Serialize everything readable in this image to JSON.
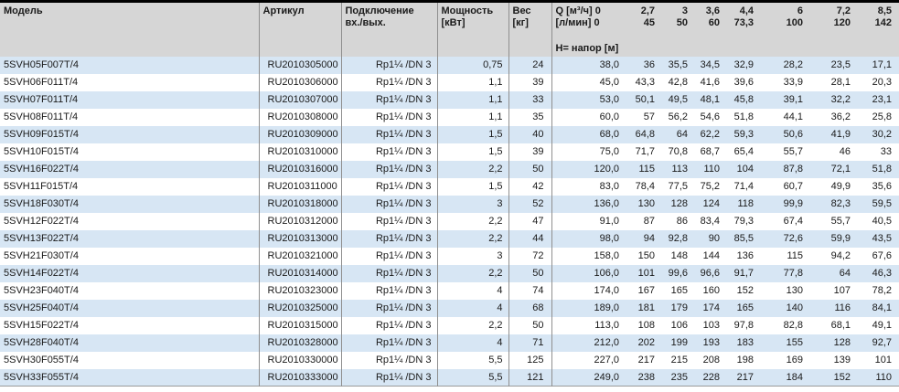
{
  "colors": {
    "header_bg": "#d6d6d6",
    "row_stripe": "#d7e6f4",
    "top_rule": "#000000",
    "column_rule": "#8f8f8f"
  },
  "table": {
    "headers": {
      "model": "Модель",
      "article": "Артикул",
      "connection": [
        "Подключение",
        "вх./вых."
      ],
      "power": [
        "Мощность",
        "[кВт]"
      ],
      "weight": [
        "Вес",
        "[кг]"
      ],
      "flow": [
        "Q [м³/ч] 0",
        "[л/мин] 0"
      ],
      "head_label": "Н= напор [м]",
      "flow_columns": [
        {
          "m3h": "2,7",
          "lmin": "45"
        },
        {
          "m3h": "3",
          "lmin": "50"
        },
        {
          "m3h": "3,6",
          "lmin": "60"
        },
        {
          "m3h": "4,4",
          "lmin": "73,3"
        },
        {
          "m3h": "6",
          "lmin": "100"
        },
        {
          "m3h": "7,2",
          "lmin": "120"
        },
        {
          "m3h": "8,5",
          "lmin": "142"
        }
      ]
    },
    "rows": [
      {
        "model": "5SVH05F007T/4",
        "article": "RU2010305000",
        "connection": "Rp1¼ /DN 3",
        "power": "0,75",
        "weight": "24",
        "head": [
          "38,0",
          "36",
          "35,5",
          "34,5",
          "32,9",
          "28,2",
          "23,5",
          "17,1"
        ]
      },
      {
        "model": "5SVH06F011T/4",
        "article": "RU2010306000",
        "connection": "Rp1¼ /DN 3",
        "power": "1,1",
        "weight": "39",
        "head": [
          "45,0",
          "43,3",
          "42,8",
          "41,6",
          "39,6",
          "33,9",
          "28,1",
          "20,3"
        ]
      },
      {
        "model": "5SVH07F011T/4",
        "article": "RU2010307000",
        "connection": "Rp1¼ /DN 3",
        "power": "1,1",
        "weight": "33",
        "head": [
          "53,0",
          "50,1",
          "49,5",
          "48,1",
          "45,8",
          "39,1",
          "32,2",
          "23,1"
        ]
      },
      {
        "model": "5SVH08F011T/4",
        "article": "RU2010308000",
        "connection": "Rp1¼ /DN 3",
        "power": "1,1",
        "weight": "35",
        "head": [
          "60,0",
          "57",
          "56,2",
          "54,6",
          "51,8",
          "44,1",
          "36,2",
          "25,8"
        ]
      },
      {
        "model": "5SVH09F015T/4",
        "article": "RU2010309000",
        "connection": "Rp1¼ /DN 3",
        "power": "1,5",
        "weight": "40",
        "head": [
          "68,0",
          "64,8",
          "64",
          "62,2",
          "59,3",
          "50,6",
          "41,9",
          "30,2"
        ]
      },
      {
        "model": "5SVH10F015T/4",
        "article": "RU2010310000",
        "connection": "Rp1¼ /DN 3",
        "power": "1,5",
        "weight": "39",
        "head": [
          "75,0",
          "71,7",
          "70,8",
          "68,7",
          "65,4",
          "55,7",
          "46",
          "33"
        ]
      },
      {
        "model": "5SVH16F022T/4",
        "article": "RU2010316000",
        "connection": "Rp1¼ /DN 3",
        "power": "2,2",
        "weight": "50",
        "head": [
          "120,0",
          "115",
          "113",
          "110",
          "104",
          "87,8",
          "72,1",
          "51,8"
        ]
      },
      {
        "model": "5SVH11F015T/4",
        "article": "RU2010311000",
        "connection": "Rp1¼ /DN 3",
        "power": "1,5",
        "weight": "42",
        "head": [
          "83,0",
          "78,4",
          "77,5",
          "75,2",
          "71,4",
          "60,7",
          "49,9",
          "35,6"
        ]
      },
      {
        "model": "5SVH18F030T/4",
        "article": "RU2010318000",
        "connection": "Rp1¼ /DN 3",
        "power": "3",
        "weight": "52",
        "head": [
          "136,0",
          "130",
          "128",
          "124",
          "118",
          "99,9",
          "82,3",
          "59,5"
        ]
      },
      {
        "model": "5SVH12F022T/4",
        "article": "RU2010312000",
        "connection": "Rp1¼ /DN 3",
        "power": "2,2",
        "weight": "47",
        "head": [
          "91,0",
          "87",
          "86",
          "83,4",
          "79,3",
          "67,4",
          "55,7",
          "40,5"
        ]
      },
      {
        "model": "5SVH13F022T/4",
        "article": "RU2010313000",
        "connection": "Rp1¼ /DN 3",
        "power": "2,2",
        "weight": "44",
        "head": [
          "98,0",
          "94",
          "92,8",
          "90",
          "85,5",
          "72,6",
          "59,9",
          "43,5"
        ]
      },
      {
        "model": "5SVH21F030T/4",
        "article": "RU2010321000",
        "connection": "Rp1¼ /DN 3",
        "power": "3",
        "weight": "72",
        "head": [
          "158,0",
          "150",
          "148",
          "144",
          "136",
          "115",
          "94,2",
          "67,6"
        ]
      },
      {
        "model": "5SVH14F022T/4",
        "article": "RU2010314000",
        "connection": "Rp1¼ /DN 3",
        "power": "2,2",
        "weight": "50",
        "head": [
          "106,0",
          "101",
          "99,6",
          "96,6",
          "91,7",
          "77,8",
          "64",
          "46,3"
        ]
      },
      {
        "model": "5SVH23F040T/4",
        "article": "RU2010323000",
        "connection": "Rp1¼ /DN 3",
        "power": "4",
        "weight": "74",
        "head": [
          "174,0",
          "167",
          "165",
          "160",
          "152",
          "130",
          "107",
          "78,2"
        ]
      },
      {
        "model": "5SVH25F040T/4",
        "article": "RU2010325000",
        "connection": "Rp1¼ /DN 3",
        "power": "4",
        "weight": "68",
        "head": [
          "189,0",
          "181",
          "179",
          "174",
          "165",
          "140",
          "116",
          "84,1"
        ]
      },
      {
        "model": "5SVH15F022T/4",
        "article": "RU2010315000",
        "connection": "Rp1¼ /DN 3",
        "power": "2,2",
        "weight": "50",
        "head": [
          "113,0",
          "108",
          "106",
          "103",
          "97,8",
          "82,8",
          "68,1",
          "49,1"
        ]
      },
      {
        "model": "5SVH28F040T/4",
        "article": "RU2010328000",
        "connection": "Rp1¼ /DN 3",
        "power": "4",
        "weight": "71",
        "head": [
          "212,0",
          "202",
          "199",
          "193",
          "183",
          "155",
          "128",
          "92,7"
        ]
      },
      {
        "model": "5SVH30F055T/4",
        "article": "RU2010330000",
        "connection": "Rp1¼ /DN 3",
        "power": "5,5",
        "weight": "125",
        "head": [
          "227,0",
          "217",
          "215",
          "208",
          "198",
          "169",
          "139",
          "101"
        ]
      },
      {
        "model": "5SVH33F055T/4",
        "article": "RU2010333000",
        "connection": "Rp1¼ /DN 3",
        "power": "5,5",
        "weight": "121",
        "head": [
          "249,0",
          "238",
          "235",
          "228",
          "217",
          "184",
          "152",
          "110"
        ]
      }
    ]
  }
}
